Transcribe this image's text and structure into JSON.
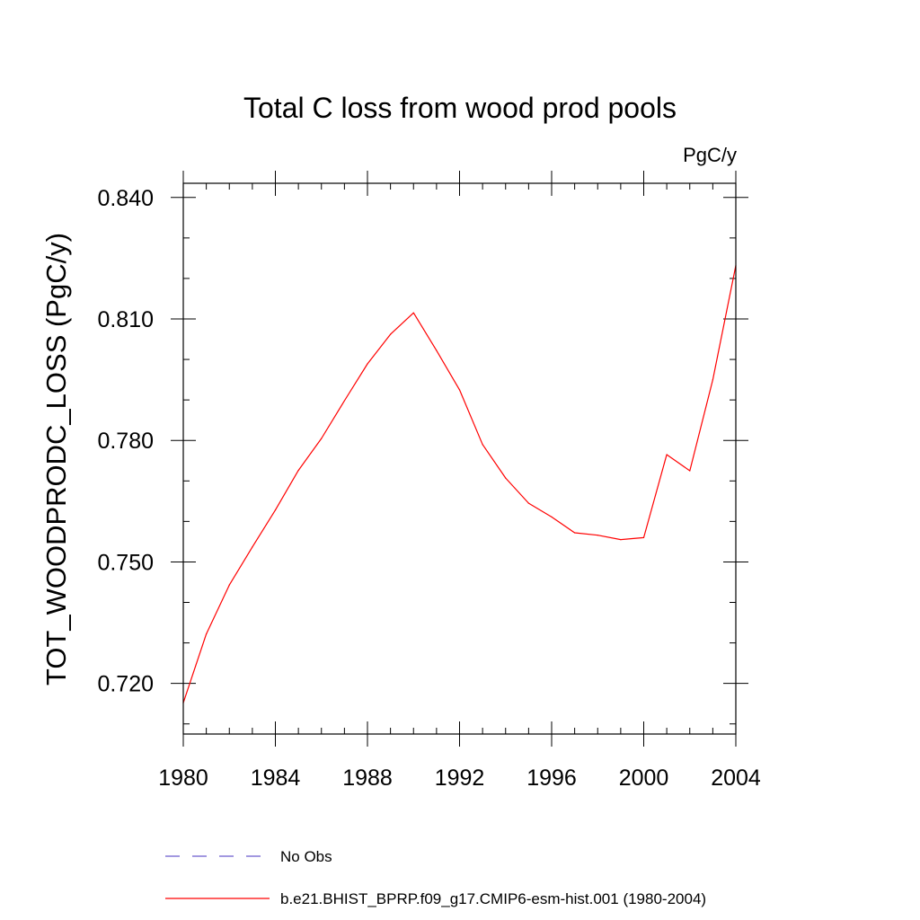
{
  "chart_data": {
    "type": "line",
    "title": "Total C loss from wood prod pools",
    "units_label": "PgC/y",
    "ylabel": "TOT_WOODPRODC_LOSS  (PgC/y)",
    "xlabel": "",
    "xlim": [
      1980,
      2004
    ],
    "ylim": [
      0.7075,
      0.8435
    ],
    "x_major_ticks": [
      1980,
      1984,
      1988,
      1992,
      1996,
      2000,
      2004
    ],
    "x_tick_labels": [
      "1980",
      "1984",
      "1988",
      "1992",
      "1996",
      "2000",
      "2004"
    ],
    "x_minor_step": 1,
    "y_major_ticks": [
      0.72,
      0.75,
      0.78,
      0.81,
      0.84
    ],
    "y_tick_labels": [
      "0.720",
      "0.750",
      "0.780",
      "0.810",
      "0.840"
    ],
    "y_minor_step": 0.01,
    "grid": false,
    "legend_position": "bottom",
    "series": [
      {
        "name": "b.e21.BHIST_BPRP.f09_g17.CMIP6-esm-hist.001 (1980-2004)",
        "color": "#ff0000",
        "style": "solid",
        "x": [
          1980,
          1981,
          1982,
          1983,
          1984,
          1985,
          1986,
          1987,
          1988,
          1989,
          1990,
          1991,
          1992,
          1993,
          1994,
          1995,
          1996,
          1997,
          1998,
          1999,
          2000,
          2001,
          2002,
          2003,
          2004
        ],
        "y": [
          0.7152,
          0.7322,
          0.7443,
          0.7537,
          0.7628,
          0.7726,
          0.7805,
          0.7898,
          0.7989,
          0.8062,
          0.8115,
          0.8022,
          0.7925,
          0.779,
          0.7707,
          0.7645,
          0.7611,
          0.7572,
          0.7566,
          0.7555,
          0.756,
          0.7765,
          0.7725,
          0.795,
          0.8232
        ]
      },
      {
        "name": "No Obs",
        "color": "#6a5acd",
        "style": "dashed",
        "x": [],
        "y": []
      }
    ]
  }
}
